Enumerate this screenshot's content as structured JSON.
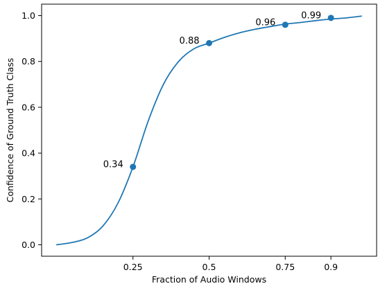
{
  "chart_data": {
    "type": "line",
    "title": "",
    "xlabel": "Fraction of Audio Windows",
    "ylabel": "Confidence of Ground Truth Class",
    "xlim": [
      -0.05,
      1.05
    ],
    "ylim": [
      -0.05,
      1.05
    ],
    "x_ticks": [
      0.25,
      0.5,
      0.75,
      0.9
    ],
    "x_tick_labels": [
      "0.25",
      "0.5",
      "0.75",
      "0.9"
    ],
    "y_ticks": [
      0.0,
      0.2,
      0.4,
      0.6,
      0.8,
      1.0
    ],
    "y_tick_labels": [
      "0.0",
      "0.2",
      "0.4",
      "0.6",
      "0.8",
      "1.0"
    ],
    "grid": false,
    "series": [
      {
        "color": "#1f77b4",
        "x": [
          0.0,
          0.05,
          0.1,
          0.15,
          0.2,
          0.25,
          0.3,
          0.35,
          0.4,
          0.45,
          0.5,
          0.55,
          0.6,
          0.65,
          0.7,
          0.75,
          0.8,
          0.85,
          0.9,
          0.95,
          1.0
        ],
        "y": [
          0.0,
          0.01,
          0.03,
          0.08,
          0.18,
          0.34,
          0.54,
          0.7,
          0.8,
          0.855,
          0.88,
          0.905,
          0.925,
          0.94,
          0.952,
          0.963,
          0.97,
          0.978,
          0.985,
          0.99,
          0.998
        ]
      }
    ],
    "points": [
      {
        "x": 0.25,
        "y": 0.34,
        "label": "0.34"
      },
      {
        "x": 0.5,
        "y": 0.88,
        "label": "0.88"
      },
      {
        "x": 0.75,
        "y": 0.96,
        "label": "0.96"
      },
      {
        "x": 0.9,
        "y": 0.99,
        "label": "0.99"
      }
    ]
  }
}
